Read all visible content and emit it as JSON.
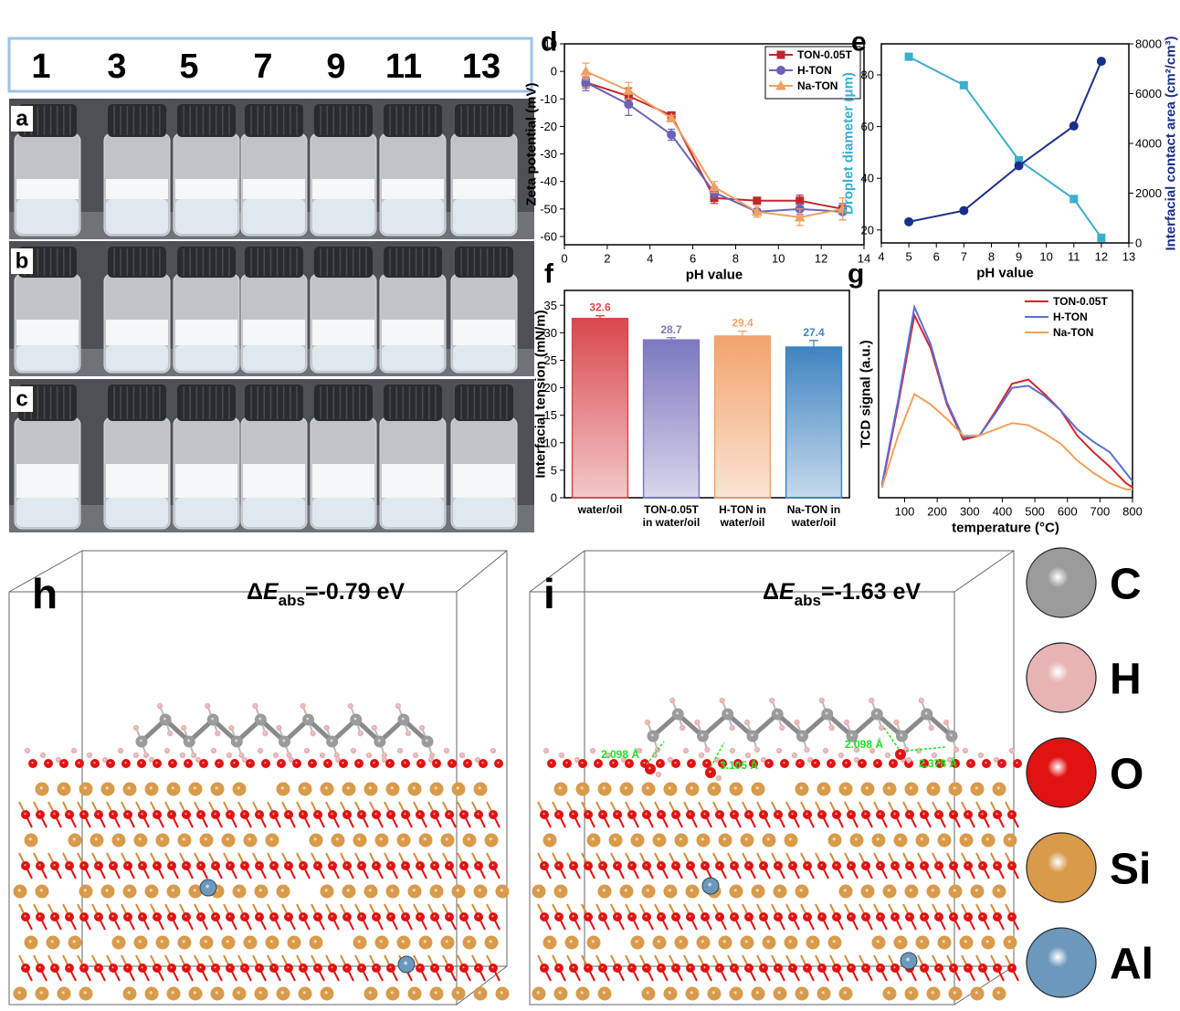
{
  "photos": {
    "column_labels": [
      "1",
      "3",
      "5",
      "7",
      "9",
      "11",
      "13"
    ],
    "row_labels": [
      "a",
      "b",
      "c"
    ]
  },
  "chart_data": [
    {
      "panel": "d",
      "type": "line",
      "x_label": "pH value",
      "y_label": "Zeta potential (mV)",
      "x": [
        1,
        3,
        5,
        7,
        9,
        11,
        13
      ],
      "xlim": [
        0,
        14
      ],
      "xticks": [
        0,
        2,
        4,
        6,
        8,
        10,
        12,
        14
      ],
      "ylim": [
        -63,
        10
      ],
      "yticks": [
        -60,
        -50,
        -40,
        -30,
        -20,
        -10,
        0,
        10
      ],
      "legend": "upper right",
      "series": [
        {
          "name": "TON-0.05T",
          "color": "#c0272d",
          "marker": "square",
          "values": [
            -4,
            -9,
            -16,
            -46,
            -47,
            -47,
            -50
          ],
          "errors": [
            2,
            3,
            1,
            2,
            1,
            2,
            2
          ]
        },
        {
          "name": "H-TON",
          "color": "#6a64b8",
          "marker": "circle",
          "values": [
            -4,
            -12,
            -23,
            -44,
            -51,
            -50,
            -51
          ],
          "errors": [
            3,
            4,
            2,
            2,
            1,
            2,
            3
          ]
        },
        {
          "name": "Na-TON",
          "color": "#f0a060",
          "marker": "triangle",
          "values": [
            0,
            -7,
            -17,
            -42,
            -51,
            -53,
            -50
          ],
          "errors": [
            3,
            3,
            1,
            2,
            2,
            3,
            4
          ]
        }
      ]
    },
    {
      "panel": "e",
      "type": "line",
      "x_label": "pH value",
      "y_label": "Droplet diameter (μm)",
      "y_label_color": "#3aaed0",
      "y2_label": "Interfacial contact area (cm²/cm³)",
      "y2_label_color": "#1a2f8c",
      "x": [
        5,
        7,
        9,
        11,
        12
      ],
      "xlim": [
        4,
        13
      ],
      "xticks": [
        4,
        5,
        6,
        7,
        8,
        9,
        10,
        11,
        12,
        13
      ],
      "ylim": [
        15,
        92
      ],
      "yticks": [
        20,
        40,
        60,
        80
      ],
      "y2lim": [
        0,
        8000
      ],
      "y2ticks": [
        0,
        2000,
        4000,
        6000,
        8000
      ],
      "series": [
        {
          "color": "#3aaed0",
          "marker": "square",
          "values": [
            87,
            76,
            47,
            32,
            17
          ]
        },
        {
          "color": "#1a2f8c",
          "marker": "circle",
          "axis": "y2",
          "values": [
            850,
            1300,
            3100,
            4700,
            7300
          ]
        }
      ]
    },
    {
      "panel": "f",
      "type": "bar",
      "y_label": "Interfacial tension (mN/m)",
      "categories": [
        [
          "water/oil"
        ],
        [
          "TON-0.05T",
          "in water/oil"
        ],
        [
          "H-TON in",
          "water/oil"
        ],
        [
          "Na-TON in",
          "water/oil"
        ]
      ],
      "values": [
        32.6,
        28.7,
        29.4,
        27.4
      ],
      "errors": [
        0.5,
        0.4,
        0.9,
        1.2
      ],
      "colors": [
        "#d9484c",
        "#7c78c0",
        "#f2a46c",
        "#3f84c0"
      ],
      "ylim": [
        0,
        37.7
      ],
      "yticks": [
        0,
        5,
        10,
        15,
        20,
        25,
        30,
        35
      ]
    },
    {
      "panel": "g",
      "type": "line",
      "x_label": "temperature (°C)",
      "y_label": "TCD signal (a.u.)",
      "x": [
        30,
        80,
        130,
        180,
        230,
        280,
        330,
        380,
        430,
        480,
        530,
        580,
        630,
        680,
        730,
        780,
        800
      ],
      "xlim": [
        20,
        800
      ],
      "xticks": [
        100,
        200,
        300,
        400,
        500,
        600,
        700,
        800
      ],
      "ylim": [
        0,
        100
      ],
      "legend": "upper right",
      "series": [
        {
          "name": "TON-0.05T",
          "color": "#d7262b",
          "values": [
            5,
            45,
            88,
            72,
            45,
            28,
            30,
            42,
            55,
            57,
            50,
            42,
            30,
            22,
            15,
            7,
            5
          ]
        },
        {
          "name": "H-TON",
          "color": "#5a6fd6",
          "values": [
            6,
            47,
            92,
            74,
            46,
            29,
            30,
            41,
            53,
            54,
            49,
            42,
            33,
            27,
            22,
            12,
            8
          ]
        },
        {
          "name": "Na-TON",
          "color": "#f3a05b",
          "values": [
            5,
            30,
            50,
            45,
            38,
            30,
            30,
            33,
            36,
            35,
            31,
            26,
            18,
            12,
            7,
            4,
            4
          ]
        }
      ]
    }
  ],
  "structures": [
    {
      "panel": "h",
      "energy": {
        "delta": "Δ",
        "symbol": "E",
        "subscript": "abs",
        "value": "=-0.79 eV"
      }
    },
    {
      "panel": "i",
      "energy": {
        "delta": "Δ",
        "symbol": "E",
        "subscript": "abs",
        "value": "=-1.63 eV"
      },
      "distances": [
        "2.098 Å",
        "3.105 Å",
        "2.098 Å",
        "2.378 Å"
      ]
    }
  ],
  "atom_legend": [
    {
      "label": "C",
      "color": "#9b9b9b"
    },
    {
      "label": "H",
      "color": "#e7b4b4"
    },
    {
      "label": "O",
      "color": "#e01212"
    },
    {
      "label": "Si",
      "color": "#d99a4a"
    },
    {
      "label": "Al",
      "color": "#6b98bb"
    }
  ]
}
